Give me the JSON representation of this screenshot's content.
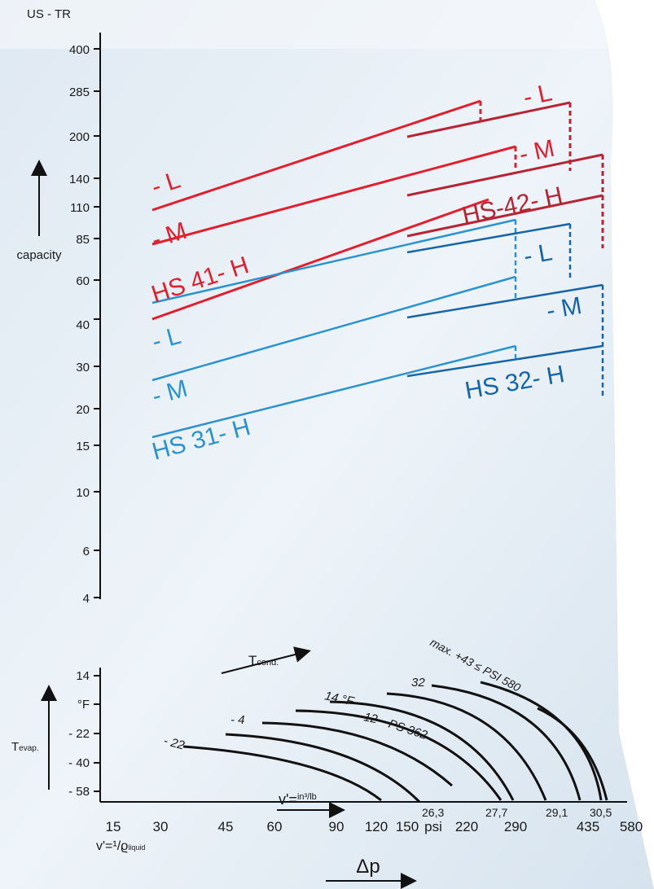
{
  "header": {
    "unit": "US - TR"
  },
  "capacity_axis": {
    "label": "capacity",
    "ticks": [
      "400",
      "285",
      "200",
      "140",
      "110",
      "85",
      "60",
      "40",
      "30",
      "20",
      "15",
      "10",
      "6",
      "4"
    ]
  },
  "red_models": {
    "low": "- L",
    "medium": "- M",
    "high": "HS 41- H",
    "low_2": "- L",
    "medium_2": "- M",
    "high_2": "HS-42- H"
  },
  "blue_models": {
    "low": "- L",
    "medium": "- M",
    "high": "HS 31- H",
    "low_2": "- L",
    "medium_2": "- M",
    "high_2": "HS 32- H"
  },
  "condensing": {
    "label": "T",
    "sub": "cond."
  },
  "evaporating": {
    "label": "T",
    "sub": "evap.",
    "ticks": [
      "14",
      "°F",
      "- 22",
      "- 40",
      "- 58"
    ]
  },
  "curve_labels": {
    "minus_22": "- 22",
    "minus_4": "- 4",
    "f14": "14 °F",
    "t12": "12",
    "ps362": "PS 362",
    "t32": "32",
    "max": "max. +43 ≤ PSI 580"
  },
  "volume_labels": [
    "26,3",
    "27,7",
    "29,1",
    "30,5"
  ],
  "specific_volume": {
    "text": "v'=",
    "sub": "in³/lb"
  },
  "pressure_axis": {
    "ticks": [
      "15",
      "30",
      "45",
      "60",
      "90",
      "120",
      "150",
      "psi",
      "220",
      "290",
      "435",
      "580"
    ],
    "label": "Δp",
    "liquid_text": "v'=¹/ϱ",
    "liquid_sub": "liquid"
  }
}
